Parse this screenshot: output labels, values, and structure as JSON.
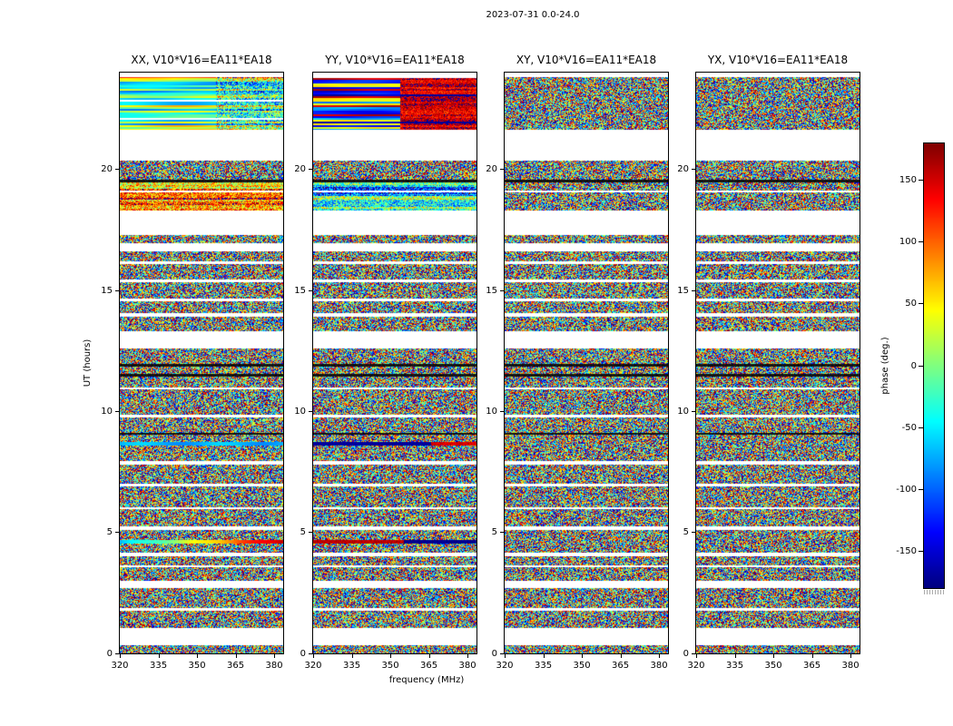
{
  "figure": {
    "title": "2023-07-31 0.0-24.0",
    "xlabel": "frequency (MHz)",
    "ylabel": "UT (hours)",
    "colorbar_label": "phase (deg.)"
  },
  "chart_data": {
    "type": "heatmap",
    "title": "2023-07-31 0.0-24.0",
    "xlabel": "frequency (MHz)",
    "ylabel": "UT (hours)",
    "colormap": "jet",
    "x_range_mhz": [
      320,
      383.5
    ],
    "x_ticks": [
      320,
      335,
      350,
      365,
      380
    ],
    "y_range_hours": [
      0,
      24
    ],
    "y_ticks": [
      0,
      5,
      10,
      15,
      20
    ],
    "color_range_deg": [
      -180,
      180
    ],
    "colorbar_ticks": [
      150,
      100,
      50,
      0,
      -50,
      -100,
      -150
    ],
    "colorbar_label": "phase (deg.)",
    "panels": [
      {
        "pol": "XX",
        "title": "XX, V10*V16=EA11*EA18"
      },
      {
        "pol": "YY",
        "title": "YY, V10*V16=EA11*EA18"
      },
      {
        "pol": "XY",
        "title": "XY, V10*V16=EA11*EA18"
      },
      {
        "pol": "YX",
        "title": "YX, V10*V16=EA11*EA18"
      }
    ],
    "smooth_band": {
      "hours": [
        21.65,
        23.8
      ],
      "split_mhz": 357
    },
    "time_segments": [
      [
        0.0,
        0.35,
        "noise"
      ],
      [
        0.35,
        1.05,
        "gap"
      ],
      [
        1.05,
        1.78,
        "noise"
      ],
      [
        1.78,
        1.86,
        "gap"
      ],
      [
        1.86,
        2.7,
        "noise"
      ],
      [
        2.7,
        3.0,
        "gap"
      ],
      [
        3.0,
        3.55,
        "noise"
      ],
      [
        3.55,
        3.63,
        "gap"
      ],
      [
        3.63,
        4.0,
        "noise"
      ],
      [
        4.0,
        4.15,
        "gap"
      ],
      [
        4.15,
        4.55,
        "noise"
      ],
      [
        4.55,
        4.7,
        "streak1"
      ],
      [
        4.7,
        5.1,
        "noise"
      ],
      [
        5.1,
        5.25,
        "gap"
      ],
      [
        5.25,
        5.97,
        "noise"
      ],
      [
        5.97,
        6.05,
        "gap"
      ],
      [
        6.05,
        6.9,
        "noise"
      ],
      [
        6.9,
        7.0,
        "gap"
      ],
      [
        7.0,
        7.8,
        "noise"
      ],
      [
        7.8,
        7.95,
        "gap"
      ],
      [
        7.95,
        8.6,
        "noise"
      ],
      [
        8.6,
        8.75,
        "streak2"
      ],
      [
        8.75,
        9.05,
        "noise"
      ],
      [
        9.05,
        9.12,
        "black"
      ],
      [
        9.12,
        9.75,
        "noise"
      ],
      [
        9.75,
        9.85,
        "gap"
      ],
      [
        9.85,
        10.9,
        "noise"
      ],
      [
        10.9,
        11.0,
        "gap"
      ],
      [
        11.0,
        11.45,
        "noise"
      ],
      [
        11.45,
        11.55,
        "black"
      ],
      [
        11.55,
        11.85,
        "noise"
      ],
      [
        11.85,
        11.95,
        "black"
      ],
      [
        11.95,
        12.6,
        "noise"
      ],
      [
        12.6,
        13.3,
        "gap"
      ],
      [
        13.3,
        13.9,
        "noise"
      ],
      [
        13.9,
        14.05,
        "gap"
      ],
      [
        14.05,
        14.55,
        "noise"
      ],
      [
        14.55,
        14.65,
        "gap"
      ],
      [
        14.65,
        15.35,
        "noise"
      ],
      [
        15.35,
        15.45,
        "gap"
      ],
      [
        15.45,
        16.1,
        "noise"
      ],
      [
        16.1,
        16.2,
        "gap"
      ],
      [
        16.2,
        16.6,
        "noise"
      ],
      [
        16.6,
        16.95,
        "gap"
      ],
      [
        16.95,
        17.3,
        "noise"
      ],
      [
        17.3,
        18.3,
        "gap"
      ],
      [
        18.3,
        19.05,
        "warm_noise"
      ],
      [
        19.05,
        19.12,
        "gap"
      ],
      [
        19.12,
        19.45,
        "warm_noise"
      ],
      [
        19.45,
        19.58,
        "black"
      ],
      [
        19.58,
        20.35,
        "noise"
      ],
      [
        20.35,
        21.65,
        "gap"
      ],
      [
        21.65,
        23.8,
        "smooth"
      ],
      [
        23.8,
        24.0,
        "gap"
      ]
    ]
  }
}
